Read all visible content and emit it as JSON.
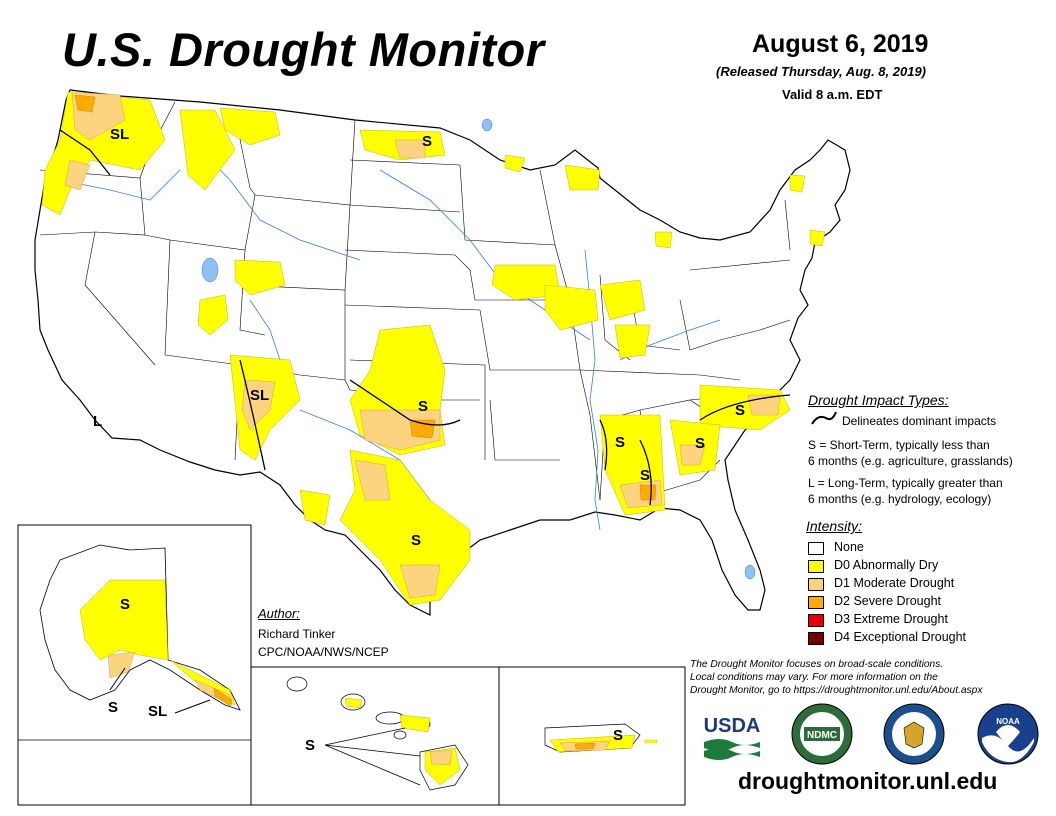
{
  "title": "U.S. Drought Monitor",
  "date": "August 6, 2019",
  "released": "(Released Thursday, Aug. 8, 2019)",
  "valid": "Valid 8 a.m. EDT",
  "map_labels": {
    "sl_northwest": "SL",
    "s_north_dakota": "S",
    "l_california": "L",
    "sl_new_mexico": "SL",
    "s_oklahoma": "S",
    "s_texas": "S",
    "s_alabama_west": "S",
    "s_georgia": "S",
    "s_carolinas": "S",
    "s_alaska": "S",
    "s_alaska_south": "S",
    "sl_alaska": "SL",
    "s_hawaii": "S",
    "s_puerto_rico": "S"
  },
  "impact_legend": {
    "title": "Drought Impact Types:",
    "delineates": "Delineates dominant impacts",
    "s_line1": "S = Short-Term, typically less than",
    "s_line2": "6 months (e.g. agriculture, grasslands)",
    "l_line1": "L = Long-Term, typically greater than",
    "l_line2": "6 months (e.g. hydrology, ecology)"
  },
  "intensity": {
    "title": "Intensity:",
    "levels": [
      {
        "label": "None",
        "color": "#ffffff"
      },
      {
        "label": "D0 Abnormally Dry",
        "color": "#ffff00"
      },
      {
        "label": "D1 Moderate Drought",
        "color": "#fcd37f"
      },
      {
        "label": "D2 Severe Drought",
        "color": "#ffaa00"
      },
      {
        "label": "D3 Extreme Drought",
        "color": "#e60000"
      },
      {
        "label": "D4 Exceptional Drought",
        "color": "#730000"
      }
    ]
  },
  "author": {
    "title": "Author:",
    "name": "Richard Tinker",
    "org": "CPC/NOAA/NWS/NCEP"
  },
  "note": {
    "line1": "The Drought Monitor focuses on broad-scale conditions.",
    "line2": "Local conditions may vary. For more information on the",
    "line3": "Drought Monitor, go to https://droughtmonitor.unl.edu/About.aspx"
  },
  "logos": {
    "usda": "USDA",
    "ndmc": "NDMC",
    "doc_icon": "commerce-seal-icon",
    "noaa": "NOAA"
  },
  "url": "droughtmonitor.unl.edu"
}
